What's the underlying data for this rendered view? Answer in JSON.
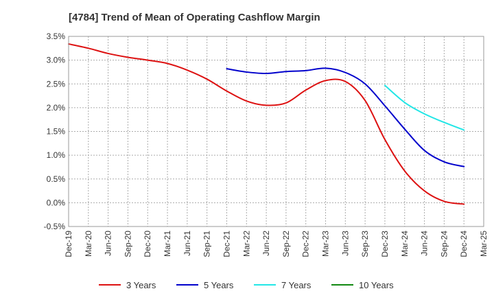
{
  "chart_data": {
    "type": "line",
    "title": "[4784]  Trend of Mean of Operating Cashflow Margin",
    "xlabel": "",
    "ylabel": "",
    "ylim": [
      -0.5,
      3.5
    ],
    "y_ticks": [
      3.5,
      3.0,
      2.5,
      2.0,
      1.5,
      1.0,
      0.5,
      0.0,
      -0.5
    ],
    "y_tick_labels": [
      "3.5%",
      "3.0%",
      "2.5%",
      "2.0%",
      "1.5%",
      "1.0%",
      "0.5%",
      "0.0%",
      "-0.5%"
    ],
    "x_labels": [
      "Dec-19",
      "Mar-20",
      "Jun-20",
      "Sep-20",
      "Dec-20",
      "Mar-21",
      "Jun-21",
      "Sep-21",
      "Dec-21",
      "Mar-22",
      "Jun-22",
      "Sep-22",
      "Dec-22",
      "Mar-23",
      "Jun-23",
      "Sep-23",
      "Dec-23",
      "Mar-24",
      "Jun-24",
      "Sep-24",
      "Dec-24",
      "Mar-25"
    ],
    "grid": true,
    "legend_position": "bottom",
    "series": [
      {
        "name": "3 Years",
        "color": "#dd1111",
        "start_index": 0,
        "values": [
          3.34,
          3.25,
          3.14,
          3.06,
          3.0,
          2.93,
          2.79,
          2.6,
          2.35,
          2.14,
          2.05,
          2.1,
          2.37,
          2.57,
          2.55,
          2.15,
          1.33,
          0.67,
          0.25,
          0.03,
          -0.03
        ]
      },
      {
        "name": "5 Years",
        "color": "#0000cc",
        "start_index": 8,
        "values": [
          2.82,
          2.75,
          2.72,
          2.76,
          2.78,
          2.83,
          2.74,
          2.5,
          2.04,
          1.55,
          1.1,
          0.86,
          0.76
        ]
      },
      {
        "name": "7 Years",
        "color": "#22e6e6",
        "start_index": 16,
        "values": [
          2.47,
          2.11,
          1.87,
          1.69,
          1.53
        ]
      },
      {
        "name": "10 Years",
        "color": "#118811",
        "start_index": 0,
        "values": []
      }
    ]
  }
}
